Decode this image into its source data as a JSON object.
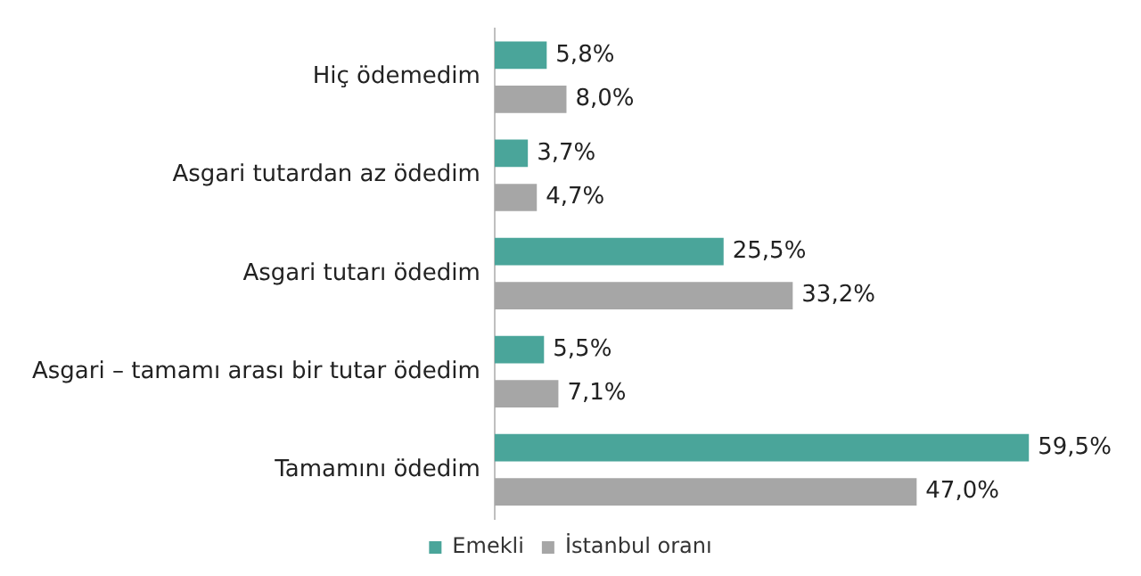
{
  "chart_data": {
    "type": "bar",
    "orientation": "horizontal",
    "categories": [
      "Hiç ödemedim",
      "Asgari tutardan az ödedim",
      "Asgari tutarı ödedim",
      "Asgari – tamamı arası bir tutar ödedim",
      "Tamamını ödedim"
    ],
    "series": [
      {
        "name": "Emekli",
        "color": "#4aa59a",
        "values": [
          5.8,
          3.7,
          25.5,
          5.5,
          59.5
        ],
        "value_labels": [
          "5,8%",
          "3,7%",
          "25,5%",
          "5,5%",
          "59,5%"
        ]
      },
      {
        "name": "İstanbul oranı",
        "color": "#a6a6a6",
        "values": [
          8.0,
          4.7,
          33.2,
          7.1,
          47.0
        ],
        "value_labels": [
          "8,0%",
          "4,7%",
          "33,2%",
          "7,1%",
          "47,0%"
        ]
      }
    ],
    "tick_labels": "y",
    "grid": false,
    "legend": "bottom"
  }
}
